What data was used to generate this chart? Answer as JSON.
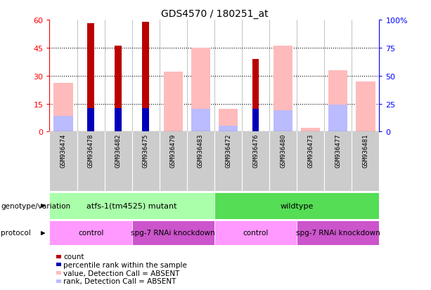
{
  "title": "GDS4570 / 180251_at",
  "samples": [
    "GSM936474",
    "GSM936478",
    "GSM936482",
    "GSM936475",
    "GSM936479",
    "GSM936483",
    "GSM936472",
    "GSM936476",
    "GSM936480",
    "GSM936473",
    "GSM936477",
    "GSM936481"
  ],
  "count_values": [
    0,
    58,
    46,
    59,
    0,
    0,
    0,
    39,
    0,
    0,
    0,
    0
  ],
  "percentile_rank": [
    0,
    21,
    21,
    21,
    0,
    0,
    0,
    20,
    0,
    0,
    0,
    0
  ],
  "absent_value": [
    26,
    0,
    0,
    0,
    32,
    45,
    12,
    0,
    46,
    2,
    33,
    27
  ],
  "absent_rank": [
    14,
    0,
    0,
    0,
    0,
    20,
    5,
    0,
    19,
    0,
    24,
    0
  ],
  "count_color": "#bb0000",
  "percentile_color": "#0000bb",
  "absent_value_color": "#ffbbbb",
  "absent_rank_color": "#bbbbff",
  "ylim_left": [
    0,
    60
  ],
  "ylim_right": [
    0,
    100
  ],
  "yticks_left": [
    0,
    15,
    30,
    45,
    60
  ],
  "ytick_labels_left": [
    "0",
    "15",
    "30",
    "45",
    "60"
  ],
  "yticks_right": [
    0,
    25,
    50,
    75,
    100
  ],
  "ytick_labels_right": [
    "0",
    "25",
    "50",
    "75",
    "100%"
  ],
  "genotype_groups": [
    {
      "label": "atfs-1(tm4525) mutant",
      "start": 0,
      "end": 6,
      "color": "#aaffaa"
    },
    {
      "label": "wildtype",
      "start": 6,
      "end": 12,
      "color": "#55dd55"
    }
  ],
  "protocol_groups": [
    {
      "label": "control",
      "start": 0,
      "end": 3,
      "color": "#ff99ff"
    },
    {
      "label": "spg-7 RNAi knockdown",
      "start": 3,
      "end": 6,
      "color": "#cc55cc"
    },
    {
      "label": "control",
      "start": 6,
      "end": 9,
      "color": "#ff99ff"
    },
    {
      "label": "spg-7 RNAi knockdown",
      "start": 9,
      "end": 12,
      "color": "#cc55cc"
    }
  ],
  "legend_items": [
    {
      "label": "count",
      "color": "#bb0000"
    },
    {
      "label": "percentile rank within the sample",
      "color": "#0000bb"
    },
    {
      "label": "value, Detection Call = ABSENT",
      "color": "#ffbbbb"
    },
    {
      "label": "rank, Detection Call = ABSENT",
      "color": "#bbbbff"
    }
  ],
  "genotype_label": "genotype/variation",
  "protocol_label": "protocol",
  "background_color": "#ffffff",
  "sample_bg_color": "#cccccc",
  "thin_bar_width": 0.25,
  "wide_bar_width": 0.7
}
